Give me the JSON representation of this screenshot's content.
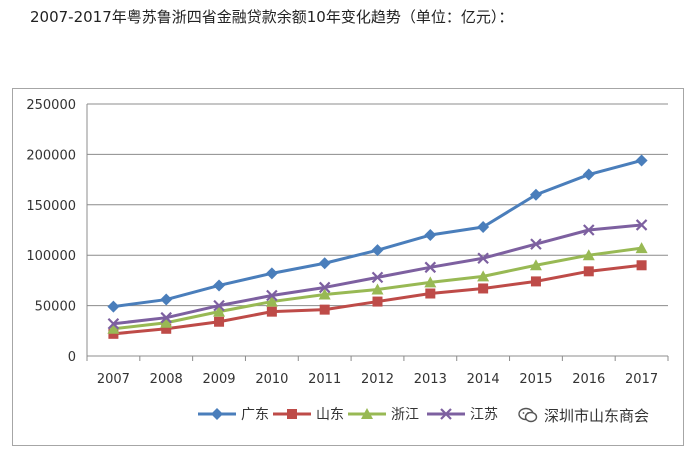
{
  "page": {
    "headline": "2007-2017年粤苏鲁浙四省金融贷款余额10年变化趋势（单位：亿元）：",
    "watermark": "深圳市山东商会"
  },
  "chart_data": {
    "type": "line",
    "title": "",
    "xlabel": "",
    "ylabel": "",
    "categories": [
      "2007",
      "2008",
      "2009",
      "2010",
      "2011",
      "2012",
      "2013",
      "2014",
      "2015",
      "2016",
      "2017"
    ],
    "ylim": [
      0,
      250000
    ],
    "yticks": [
      0,
      50000,
      100000,
      150000,
      200000,
      250000
    ],
    "ytick_labels": [
      "0",
      "50000",
      "100000",
      "150000",
      "200000",
      "250000"
    ],
    "grid": true,
    "legend_position": "bottom",
    "series": [
      {
        "name": "广东",
        "color": "#4a7ebb",
        "marker": "diamond",
        "values": [
          49000,
          56000,
          70000,
          82000,
          92000,
          105000,
          120000,
          128000,
          160000,
          180000,
          194000
        ]
      },
      {
        "name": "山东",
        "color": "#be4b48",
        "marker": "square",
        "values": [
          22000,
          27000,
          34000,
          44000,
          46000,
          54000,
          62000,
          67000,
          74000,
          84000,
          90000
        ]
      },
      {
        "name": "浙江",
        "color": "#98b954",
        "marker": "triangle",
        "values": [
          27000,
          33000,
          44000,
          54000,
          61000,
          66000,
          73000,
          79000,
          90000,
          100000,
          107000
        ]
      },
      {
        "name": "江苏",
        "color": "#7d60a0",
        "marker": "x",
        "values": [
          32000,
          38000,
          50000,
          60000,
          68000,
          78000,
          88000,
          97000,
          111000,
          125000,
          130000
        ]
      }
    ]
  }
}
